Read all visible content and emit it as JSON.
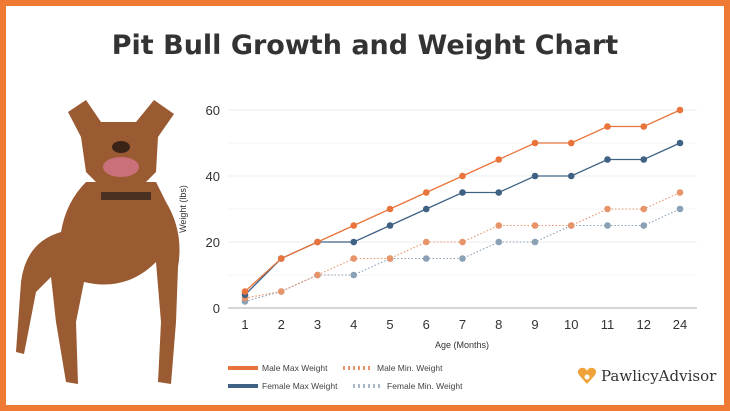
{
  "title": "Pit Bull Growth and Weight Chart",
  "brand": "PawlicyAdvisor",
  "colors": {
    "border": "#ef7a33",
    "male": "#e8743b",
    "female": "#3f6184",
    "male_min": "#e8946a",
    "female_min": "#8aa0b5"
  },
  "chart_data": {
    "type": "line",
    "title": "Pit Bull Growth and Weight Chart",
    "xlabel": "Age (Months)",
    "ylabel": "Weight (lbs)",
    "categories": [
      "1",
      "2",
      "3",
      "4",
      "5",
      "6",
      "7",
      "8",
      "9",
      "10",
      "11",
      "12",
      "24"
    ],
    "ylim": [
      0,
      60
    ],
    "yticks": [
      0,
      20,
      40,
      60
    ],
    "grid": true,
    "legend": "bottom",
    "series": [
      {
        "name": "Male Max Weight",
        "style": "solid",
        "color": "#e8743b",
        "values": [
          5,
          15,
          20,
          25,
          30,
          35,
          40,
          45,
          50,
          50,
          55,
          55,
          60
        ]
      },
      {
        "name": "Male Min. Weight",
        "style": "dotted",
        "color": "#e8946a",
        "values": [
          3,
          5,
          10,
          15,
          15,
          20,
          20,
          25,
          25,
          25,
          30,
          30,
          35
        ]
      },
      {
        "name": "Female Max Weight",
        "style": "solid",
        "color": "#3f6184",
        "values": [
          4,
          15,
          20,
          20,
          25,
          30,
          35,
          35,
          40,
          40,
          45,
          45,
          50
        ]
      },
      {
        "name": "Female Min. Weight",
        "style": "dotted",
        "color": "#8aa0b5",
        "values": [
          2,
          5,
          10,
          10,
          15,
          15,
          15,
          20,
          20,
          25,
          25,
          25,
          30
        ]
      }
    ]
  }
}
